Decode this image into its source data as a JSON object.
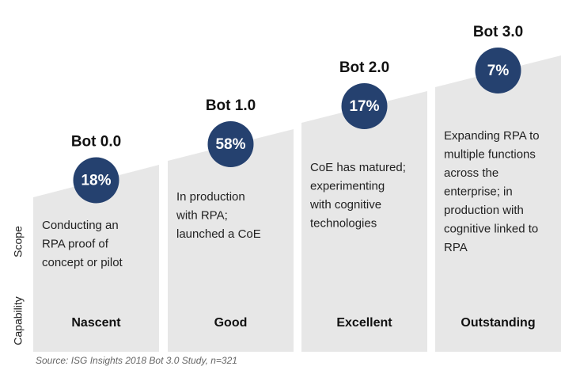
{
  "axis_labels": {
    "scope": "Scope",
    "capability": "Capability"
  },
  "stages": [
    {
      "title": "Bot 0.0",
      "percent": "18%",
      "description": [
        "Conducting an",
        "RPA proof of",
        "concept or pilot"
      ],
      "capability": "Nascent"
    },
    {
      "title": "Bot 1.0",
      "percent": "58%",
      "description": [
        "In production",
        "with RPA;",
        "launched a CoE"
      ],
      "capability": "Good"
    },
    {
      "title": "Bot 2.0",
      "percent": "17%",
      "description": [
        "CoE has matured;",
        "experimenting",
        "with cognitive",
        "technologies"
      ],
      "capability": "Excellent"
    },
    {
      "title": "Bot 3.0",
      "percent": "7%",
      "description": [
        "Expanding RPA to",
        "multiple functions",
        "across the",
        "enterprise; in",
        "production with",
        "cognitive linked to",
        "RPA"
      ],
      "capability": "Outstanding"
    }
  ],
  "source": "Source: ISG Insights 2018 Bot 3.0 Study, n=321"
}
